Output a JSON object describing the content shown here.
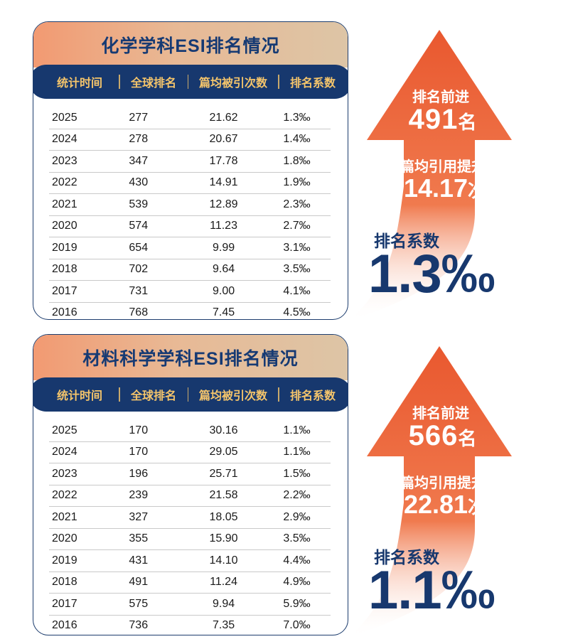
{
  "colors": {
    "navy": "#17386e",
    "gold": "#f5c56b",
    "arrow_orange": "#ea5f3a",
    "title_gradient_start": "#f29a72",
    "title_gradient_end": "#ddc5a6"
  },
  "chart_data": [
    {
      "type": "table",
      "title": "化学学科ESI排名情况",
      "columns": [
        "统计时间",
        "全球排名",
        "篇均被引次数",
        "排名系数"
      ],
      "rows": [
        [
          "2025",
          "277",
          "21.62",
          "1.3‰"
        ],
        [
          "2024",
          "278",
          "20.67",
          "1.4‰"
        ],
        [
          "2023",
          "347",
          "17.78",
          "1.8‰"
        ],
        [
          "2022",
          "430",
          "14.91",
          "1.9‰"
        ],
        [
          "2021",
          "539",
          "12.89",
          "2.3‰"
        ],
        [
          "2020",
          "574",
          "11.23",
          "2.7‰"
        ],
        [
          "2019",
          "654",
          "9.99",
          "3.1‰"
        ],
        [
          "2018",
          "702",
          "9.64",
          "3.5‰"
        ],
        [
          "2017",
          "731",
          "9.00",
          "4.1‰"
        ],
        [
          "2016",
          "768",
          "7.45",
          "4.5‰"
        ]
      ]
    },
    {
      "type": "table",
      "title": "材料科学学科ESI排名情况",
      "columns": [
        "统计时间",
        "全球排名",
        "篇均被引次数",
        "排名系数"
      ],
      "rows": [
        [
          "2025",
          "170",
          "30.16",
          "1.1‰"
        ],
        [
          "2024",
          "170",
          "29.05",
          "1.1‰"
        ],
        [
          "2023",
          "196",
          "25.71",
          "1.5‰"
        ],
        [
          "2022",
          "239",
          "21.58",
          "2.2‰"
        ],
        [
          "2021",
          "327",
          "18.05",
          "2.9‰"
        ],
        [
          "2020",
          "355",
          "15.90",
          "3.5‰"
        ],
        [
          "2019",
          "431",
          "14.10",
          "4.4‰"
        ],
        [
          "2018",
          "491",
          "11.24",
          "4.9‰"
        ],
        [
          "2017",
          "575",
          "9.94",
          "5.9‰"
        ],
        [
          "2016",
          "736",
          "7.35",
          "7.0‰"
        ]
      ]
    }
  ],
  "highlights": [
    {
      "rank_label": "排名前进",
      "rank_value": "491",
      "rank_unit": "名",
      "cite_label": "篇均引用提升",
      "cite_value": "14.17",
      "cite_unit": "次",
      "coef_label": "排名系数",
      "coef_value": "1.3‰"
    },
    {
      "rank_label": "排名前进",
      "rank_value": "566",
      "rank_unit": "名",
      "cite_label": "篇均引用提升",
      "cite_value": "22.81",
      "cite_unit": "次",
      "coef_label": "排名系数",
      "coef_value": "1.1‰"
    }
  ]
}
